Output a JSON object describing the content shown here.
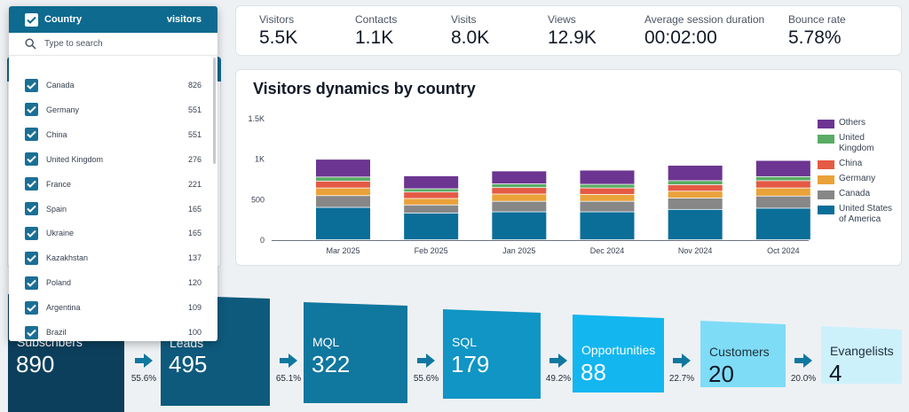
{
  "kpis": [
    {
      "label": "Visitors",
      "value": "5.5K"
    },
    {
      "label": "Contacts",
      "value": "1.1K"
    },
    {
      "label": "Visits",
      "value": "8.0K"
    },
    {
      "label": "Views",
      "value": "12.9K"
    },
    {
      "label": "Average session duration",
      "value": "00:02:00"
    },
    {
      "label": "Bounce rate",
      "value": "5.78%"
    }
  ],
  "chart_data": {
    "type": "bar",
    "stacked": true,
    "title": "Visitors dynamics by country",
    "categories": [
      "Mar 2025",
      "Feb 2025",
      "Jan 2025",
      "Dec 2024",
      "Nov 2024",
      "Oct 2024"
    ],
    "y_ticks": [
      "0",
      "500",
      "1K",
      "1.5K"
    ],
    "ylim": [
      0,
      1500
    ],
    "series": [
      {
        "name": "United States of America",
        "color": "#0b6e99",
        "values": [
          400,
          330,
          345,
          345,
          375,
          390
        ]
      },
      {
        "name": "Canada",
        "color": "#878787",
        "values": [
          145,
          100,
          130,
          130,
          140,
          150
        ]
      },
      {
        "name": "Germany",
        "color": "#eaa23a",
        "values": [
          95,
          80,
          90,
          85,
          85,
          100
        ]
      },
      {
        "name": "China",
        "color": "#e45a45",
        "values": [
          85,
          80,
          80,
          80,
          80,
          90
        ]
      },
      {
        "name": "United Kingdom",
        "color": "#58ac63",
        "values": [
          50,
          40,
          45,
          45,
          50,
          50
        ]
      },
      {
        "name": "Others",
        "color": "#6c3591",
        "values": [
          220,
          160,
          160,
          175,
          190,
          200
        ]
      }
    ],
    "legend": [
      "Others",
      "United Kingdom",
      "China",
      "Germany",
      "Canada",
      "United States of America"
    ]
  },
  "funnel": {
    "stages": [
      {
        "label": "Subscribers",
        "value": "890",
        "color": "#0c3f5c"
      },
      {
        "label": "Leads",
        "value": "495",
        "color": "#0e5a7d"
      },
      {
        "label": "MQL",
        "value": "322",
        "color": "#10779f"
      },
      {
        "label": "SQL",
        "value": "179",
        "color": "#1095c4"
      },
      {
        "label": "Opportunities",
        "value": "88",
        "color": "#13b6ef"
      },
      {
        "label": "Customers",
        "value": "20",
        "color": "#7fdcf7"
      },
      {
        "label": "Evangelists",
        "value": "4",
        "color": "#cdf1fb"
      }
    ],
    "conversions": [
      "55.6%",
      "65.1%",
      "55.6%",
      "49.2%",
      "22.7%",
      "20.0%"
    ]
  },
  "dropdown": {
    "title": "Country",
    "column": "visitors",
    "search_placeholder": "Type to search",
    "items": [
      {
        "name": "Canada",
        "count": "826"
      },
      {
        "name": "Germany",
        "count": "551"
      },
      {
        "name": "China",
        "count": "551"
      },
      {
        "name": "United Kingdom",
        "count": "276"
      },
      {
        "name": "France",
        "count": "221"
      },
      {
        "name": "Spain",
        "count": "165"
      },
      {
        "name": "Ukraine",
        "count": "165"
      },
      {
        "name": "Kazakhstan",
        "count": "137"
      },
      {
        "name": "Poland",
        "count": "120"
      },
      {
        "name": "Argentina",
        "count": "109"
      },
      {
        "name": "Brazil",
        "count": "100"
      }
    ]
  },
  "colors": {
    "accent": "#0f6a8f",
    "checkbox": "#1b6f95"
  }
}
